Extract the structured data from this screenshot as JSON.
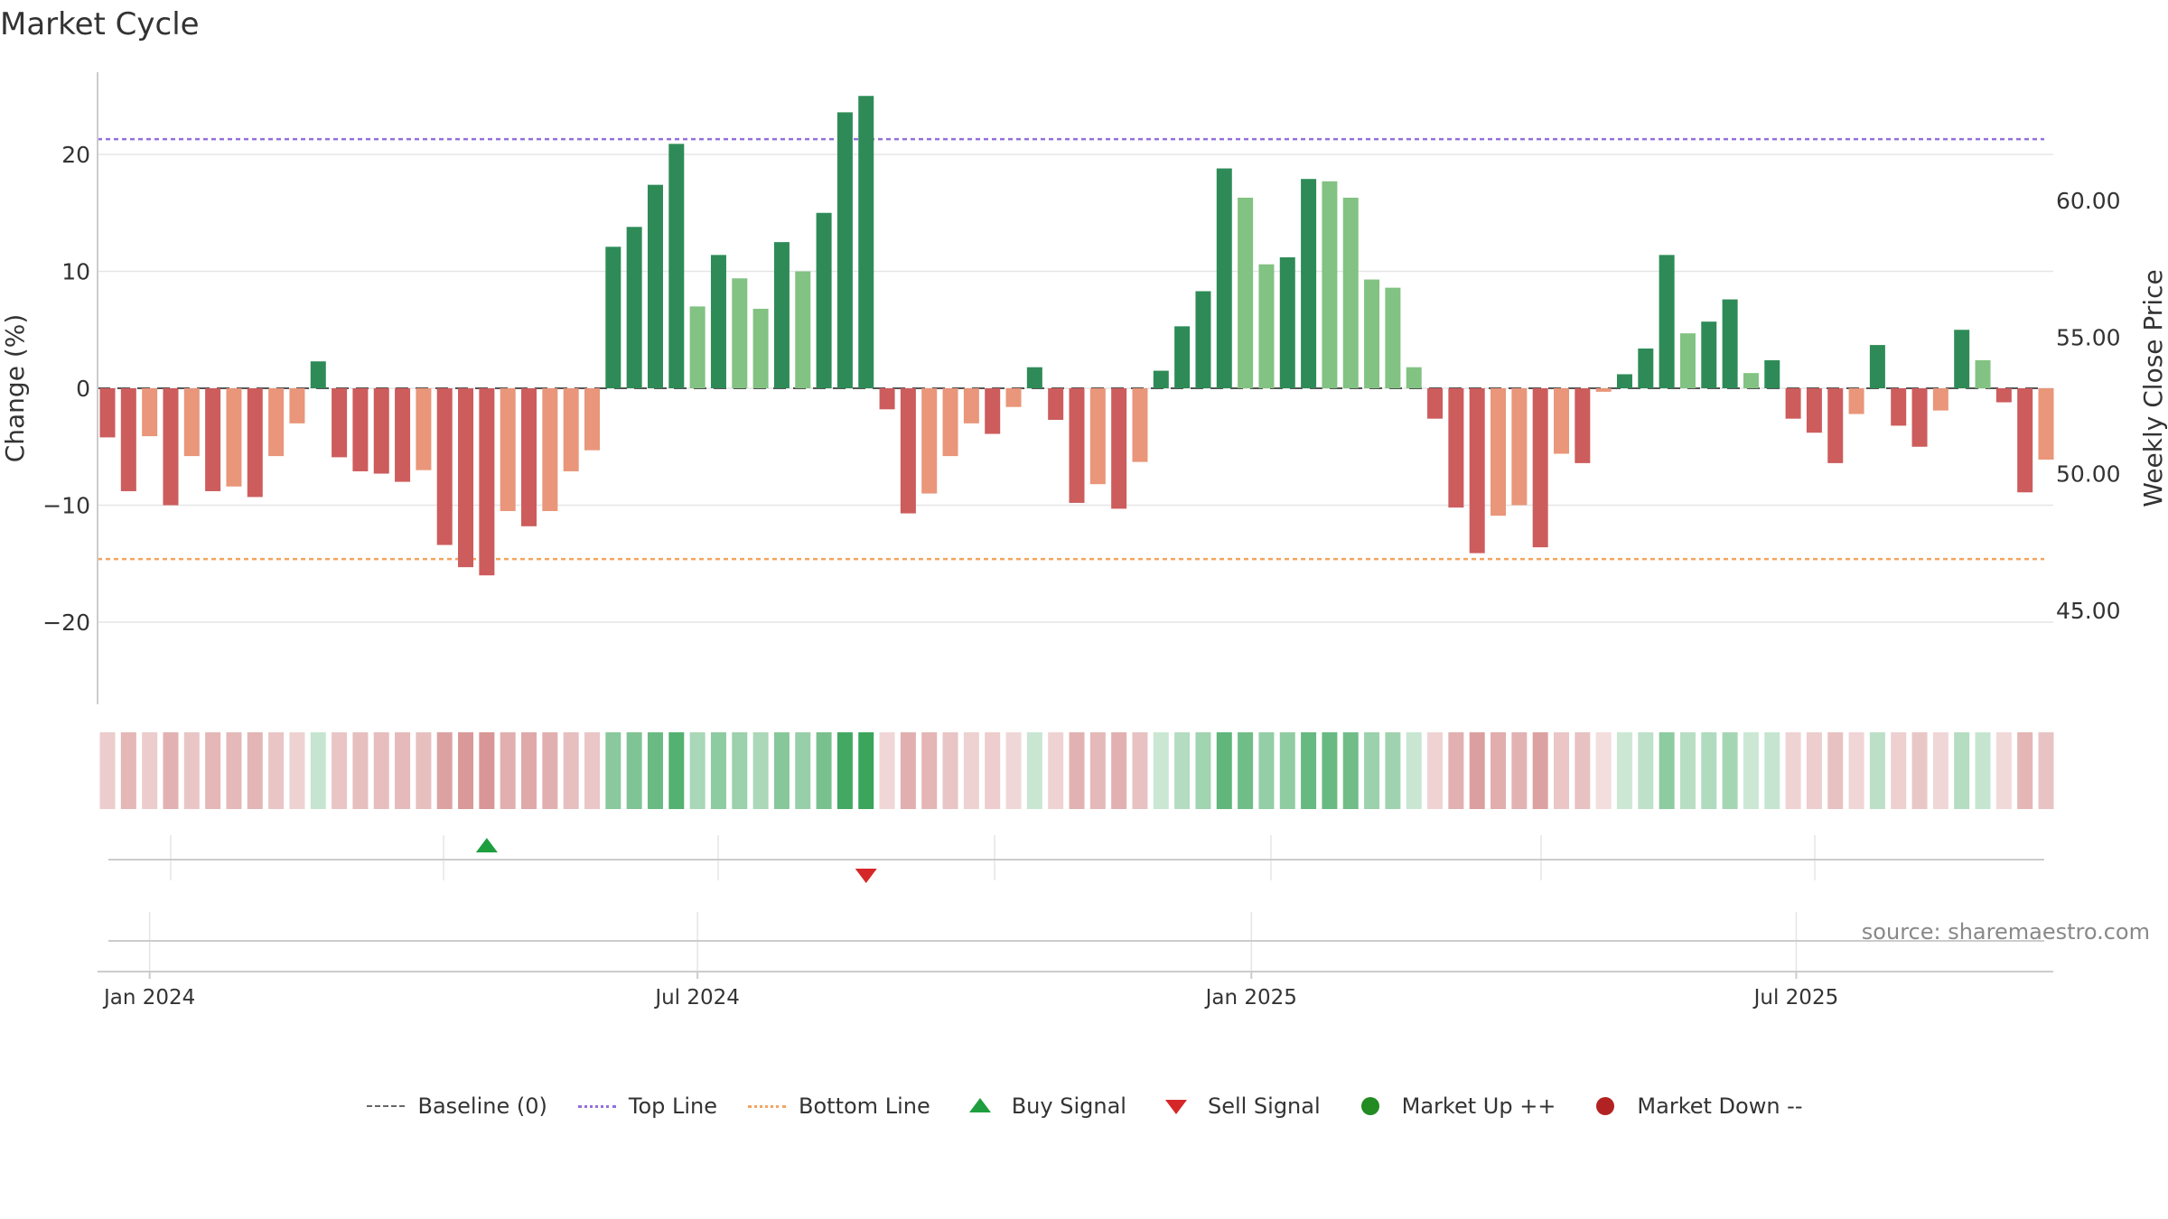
{
  "chart_data": {
    "type": "bar",
    "title": "Market Cycle",
    "ylabel": "Change (%)",
    "ylabel_right": "Weekly Close Price",
    "ylim": [
      -27,
      27
    ],
    "ylim_right": [
      42.0,
      65.0
    ],
    "yticks": [
      -20,
      -10,
      0,
      10,
      20
    ],
    "yticks_labels": [
      "−20",
      "−10",
      "0",
      "10",
      "20"
    ],
    "yticks_right": [
      45,
      50,
      55,
      60
    ],
    "yticks_right_labels": [
      "45.00",
      "50.00",
      "55.00",
      "60.00"
    ],
    "x_date_range": [
      "2023-12-12",
      "2025-09-08"
    ],
    "xticks": [
      {
        "date": "2024-01-01",
        "label": "Jan 2024"
      },
      {
        "date": "2024-07-01",
        "label": "Jul 2024"
      },
      {
        "date": "2025-01-01",
        "label": "Jan 2025"
      },
      {
        "date": "2025-07-01",
        "label": "Jul 2025"
      }
    ],
    "top_line": 21.3,
    "bottom_line": -14.6,
    "grid": true,
    "legend_position": "bottom",
    "source_text": "source: sharemaestro.com",
    "colors": {
      "up_strong": "#2e8b57",
      "up_weak": "#82c282",
      "down_strong": "#cd5c5c",
      "down_weak": "#e9967a",
      "top_line": "#9370db",
      "bottom_line": "#f4a460",
      "baseline": "#555555",
      "buy_signal": "#1f9e3f",
      "sell_signal": "#d62728",
      "market_up": "#228b22",
      "market_down": "#b22222",
      "heat_up": "#3ba55c",
      "heat_down": "#c96d6d",
      "grid": "#e5e5e5",
      "axis": "#cccccc",
      "text": "#333333",
      "source": "#888888"
    },
    "bars": [
      {
        "date": "2023-12-18",
        "value": -4.2,
        "strength": "strong"
      },
      {
        "date": "2023-12-25",
        "value": -8.8,
        "strength": "strong"
      },
      {
        "date": "2024-01-01",
        "value": -4.1,
        "strength": "weak"
      },
      {
        "date": "2024-01-08",
        "value": -10.0,
        "strength": "strong"
      },
      {
        "date": "2024-01-15",
        "value": -5.8,
        "strength": "weak"
      },
      {
        "date": "2024-01-22",
        "value": -8.8,
        "strength": "strong"
      },
      {
        "date": "2024-01-29",
        "value": -8.4,
        "strength": "weak"
      },
      {
        "date": "2024-02-05",
        "value": -9.3,
        "strength": "strong"
      },
      {
        "date": "2024-02-12",
        "value": -5.8,
        "strength": "weak"
      },
      {
        "date": "2024-02-19",
        "value": -3.0,
        "strength": "weak"
      },
      {
        "date": "2024-02-26",
        "value": 2.3,
        "strength": "strong"
      },
      {
        "date": "2024-03-04",
        "value": -5.9,
        "strength": "strong"
      },
      {
        "date": "2024-03-11",
        "value": -7.1,
        "strength": "strong"
      },
      {
        "date": "2024-03-18",
        "value": -7.3,
        "strength": "strong"
      },
      {
        "date": "2024-03-25",
        "value": -8.0,
        "strength": "strong"
      },
      {
        "date": "2024-04-01",
        "value": -7.0,
        "strength": "weak"
      },
      {
        "date": "2024-04-08",
        "value": -13.4,
        "strength": "strong"
      },
      {
        "date": "2024-04-15",
        "value": -15.3,
        "strength": "strong"
      },
      {
        "date": "2024-04-22",
        "value": -16.0,
        "strength": "strong"
      },
      {
        "date": "2024-04-29",
        "value": -10.5,
        "strength": "weak"
      },
      {
        "date": "2024-05-06",
        "value": -11.8,
        "strength": "strong"
      },
      {
        "date": "2024-05-13",
        "value": -10.5,
        "strength": "weak"
      },
      {
        "date": "2024-05-20",
        "value": -7.1,
        "strength": "weak"
      },
      {
        "date": "2024-05-27",
        "value": -5.3,
        "strength": "weak"
      },
      {
        "date": "2024-06-03",
        "value": 12.1,
        "strength": "strong"
      },
      {
        "date": "2024-06-10",
        "value": 13.8,
        "strength": "strong"
      },
      {
        "date": "2024-06-17",
        "value": 17.4,
        "strength": "strong"
      },
      {
        "date": "2024-06-24",
        "value": 20.9,
        "strength": "strong"
      },
      {
        "date": "2024-07-01",
        "value": 7.0,
        "strength": "weak"
      },
      {
        "date": "2024-07-08",
        "value": 11.4,
        "strength": "strong"
      },
      {
        "date": "2024-07-15",
        "value": 9.4,
        "strength": "weak"
      },
      {
        "date": "2024-07-22",
        "value": 6.8,
        "strength": "weak"
      },
      {
        "date": "2024-07-29",
        "value": 12.5,
        "strength": "strong"
      },
      {
        "date": "2024-08-05",
        "value": 10.0,
        "strength": "weak"
      },
      {
        "date": "2024-08-12",
        "value": 15.0,
        "strength": "strong"
      },
      {
        "date": "2024-08-19",
        "value": 23.6,
        "strength": "strong"
      },
      {
        "date": "2024-08-26",
        "value": 25.0,
        "strength": "strong"
      },
      {
        "date": "2024-09-02",
        "value": -1.8,
        "strength": "strong"
      },
      {
        "date": "2024-09-09",
        "value": -10.7,
        "strength": "strong"
      },
      {
        "date": "2024-09-16",
        "value": -9.0,
        "strength": "weak"
      },
      {
        "date": "2024-09-23",
        "value": -5.8,
        "strength": "weak"
      },
      {
        "date": "2024-09-30",
        "value": -3.0,
        "strength": "weak"
      },
      {
        "date": "2024-10-07",
        "value": -3.9,
        "strength": "strong"
      },
      {
        "date": "2024-10-14",
        "value": -1.6,
        "strength": "weak"
      },
      {
        "date": "2024-10-21",
        "value": 1.8,
        "strength": "strong"
      },
      {
        "date": "2024-10-28",
        "value": -2.7,
        "strength": "strong"
      },
      {
        "date": "2024-11-04",
        "value": -9.8,
        "strength": "strong"
      },
      {
        "date": "2024-11-11",
        "value": -8.2,
        "strength": "weak"
      },
      {
        "date": "2024-11-18",
        "value": -10.3,
        "strength": "strong"
      },
      {
        "date": "2024-11-25",
        "value": -6.3,
        "strength": "weak"
      },
      {
        "date": "2024-12-02",
        "value": 1.5,
        "strength": "strong"
      },
      {
        "date": "2024-12-09",
        "value": 5.3,
        "strength": "strong"
      },
      {
        "date": "2024-12-16",
        "value": 8.3,
        "strength": "strong"
      },
      {
        "date": "2024-12-23",
        "value": 18.8,
        "strength": "strong"
      },
      {
        "date": "2024-12-30",
        "value": 16.3,
        "strength": "weak"
      },
      {
        "date": "2025-01-06",
        "value": 10.6,
        "strength": "weak"
      },
      {
        "date": "2025-01-13",
        "value": 11.2,
        "strength": "strong"
      },
      {
        "date": "2025-01-20",
        "value": 17.9,
        "strength": "strong"
      },
      {
        "date": "2025-01-27",
        "value": 17.7,
        "strength": "weak"
      },
      {
        "date": "2025-02-03",
        "value": 16.3,
        "strength": "weak"
      },
      {
        "date": "2025-02-10",
        "value": 9.3,
        "strength": "weak"
      },
      {
        "date": "2025-02-17",
        "value": 8.6,
        "strength": "weak"
      },
      {
        "date": "2025-02-24",
        "value": 1.8,
        "strength": "weak"
      },
      {
        "date": "2025-03-03",
        "value": -2.6,
        "strength": "strong"
      },
      {
        "date": "2025-03-10",
        "value": -10.2,
        "strength": "strong"
      },
      {
        "date": "2025-03-17",
        "value": -14.1,
        "strength": "strong"
      },
      {
        "date": "2025-03-24",
        "value": -10.9,
        "strength": "weak"
      },
      {
        "date": "2025-03-31",
        "value": -10.0,
        "strength": "weak"
      },
      {
        "date": "2025-04-07",
        "value": -13.6,
        "strength": "strong"
      },
      {
        "date": "2025-04-14",
        "value": -5.6,
        "strength": "weak"
      },
      {
        "date": "2025-04-21",
        "value": -6.4,
        "strength": "strong"
      },
      {
        "date": "2025-04-28",
        "value": -0.3,
        "strength": "weak"
      },
      {
        "date": "2025-05-05",
        "value": 1.2,
        "strength": "strong"
      },
      {
        "date": "2025-05-12",
        "value": 3.4,
        "strength": "strong"
      },
      {
        "date": "2025-05-19",
        "value": 11.4,
        "strength": "strong"
      },
      {
        "date": "2025-05-26",
        "value": 4.7,
        "strength": "weak"
      },
      {
        "date": "2025-06-02",
        "value": 5.7,
        "strength": "strong"
      },
      {
        "date": "2025-06-09",
        "value": 7.6,
        "strength": "strong"
      },
      {
        "date": "2025-06-16",
        "value": 1.3,
        "strength": "weak"
      },
      {
        "date": "2025-06-23",
        "value": 2.4,
        "strength": "strong"
      },
      {
        "date": "2025-06-30",
        "value": -2.6,
        "strength": "strong"
      },
      {
        "date": "2025-07-07",
        "value": -3.8,
        "strength": "strong"
      },
      {
        "date": "2025-07-14",
        "value": -6.4,
        "strength": "strong"
      },
      {
        "date": "2025-07-21",
        "value": -2.2,
        "strength": "weak"
      },
      {
        "date": "2025-07-28",
        "value": 3.7,
        "strength": "strong"
      },
      {
        "date": "2025-08-04",
        "value": -3.2,
        "strength": "strong"
      },
      {
        "date": "2025-08-11",
        "value": -5.0,
        "strength": "strong"
      },
      {
        "date": "2025-08-18",
        "value": -1.9,
        "strength": "weak"
      },
      {
        "date": "2025-08-25",
        "value": 5.0,
        "strength": "strong"
      },
      {
        "date": "2025-09-01",
        "value": 2.4,
        "strength": "weak"
      },
      {
        "date": "2025-09-08",
        "value": -1.2,
        "strength": "strong"
      },
      {
        "date": "2025-09-15",
        "value": -8.9,
        "strength": "strong"
      },
      {
        "date": "2025-09-22",
        "value": -6.1,
        "strength": "weak"
      }
    ],
    "signals": [
      {
        "type": "buy",
        "date": "2024-04-22"
      },
      {
        "type": "sell",
        "date": "2024-08-26"
      }
    ]
  },
  "legend": [
    {
      "kind": "baseline",
      "label": "Baseline (0)"
    },
    {
      "kind": "top_line",
      "label": "Top Line"
    },
    {
      "kind": "bottom_line",
      "label": "Bottom Line"
    },
    {
      "kind": "buy_signal",
      "label": "Buy Signal"
    },
    {
      "kind": "sell_signal",
      "label": "Sell Signal"
    },
    {
      "kind": "market_up",
      "label": "Market Up ++"
    },
    {
      "kind": "market_down",
      "label": "Market Down --"
    }
  ]
}
